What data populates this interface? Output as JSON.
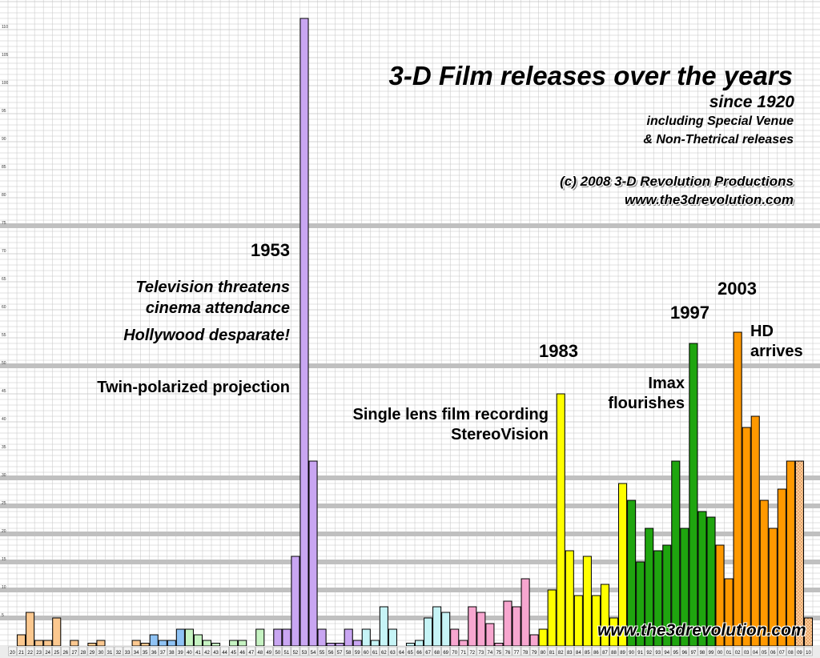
{
  "chart_data": {
    "type": "bar",
    "title": "3-D Film releases over the years",
    "subtitle": "since 1920",
    "notes": [
      "including Special Venue",
      "& Non-Thetrical releases"
    ],
    "copyright": "(c) 2008  3-D Revolution Productions",
    "website": "www.the3drevolution.com",
    "watermark": "www.the3drevolution.com",
    "ylim": [
      0,
      115
    ],
    "grid": true,
    "y_ticks": [
      5,
      10,
      15,
      20,
      25,
      30,
      35,
      40,
      45,
      50,
      55,
      60,
      65,
      70,
      75,
      80,
      85,
      90,
      95,
      100,
      105,
      110,
      115
    ],
    "highlight_lines": [
      5,
      10,
      15,
      20,
      25,
      30,
      50,
      75
    ],
    "categories": [
      "20",
      "21",
      "22",
      "23",
      "24",
      "25",
      "26",
      "27",
      "28",
      "29",
      "30",
      "31",
      "32",
      "33",
      "34",
      "35",
      "36",
      "37",
      "38",
      "39",
      "40",
      "41",
      "42",
      "43",
      "44",
      "45",
      "46",
      "47",
      "48",
      "49",
      "50",
      "51",
      "52",
      "53",
      "54",
      "55",
      "56",
      "57",
      "58",
      "59",
      "60",
      "61",
      "62",
      "63",
      "64",
      "65",
      "66",
      "67",
      "68",
      "69",
      "70",
      "71",
      "72",
      "73",
      "74",
      "75",
      "76",
      "77",
      "78",
      "79",
      "80",
      "81",
      "82",
      "83",
      "84",
      "85",
      "86",
      "87",
      "88",
      "89",
      "90",
      "91",
      "92",
      "93",
      "94",
      "95",
      "96",
      "97",
      "98",
      "99",
      "00",
      "01",
      "02",
      "03",
      "04",
      "05",
      "06",
      "07",
      "08",
      "09",
      "10"
    ],
    "values": [
      0,
      2,
      6,
      1,
      1,
      5,
      0,
      1,
      0,
      0.5,
      1,
      0,
      0,
      0,
      1,
      0.5,
      2,
      1,
      1,
      3,
      3,
      2,
      1,
      0.5,
      0,
      1,
      1,
      0,
      3,
      0,
      3,
      3,
      16,
      112,
      33,
      3,
      0.5,
      0.5,
      3,
      1,
      3,
      1,
      7,
      3,
      0,
      0.5,
      1,
      5,
      7,
      6,
      3,
      1,
      7,
      6,
      4,
      0.5,
      8,
      7,
      12,
      2,
      3,
      10,
      45,
      17,
      9,
      16,
      9,
      11,
      5,
      29,
      26,
      15,
      21,
      17,
      18,
      33,
      21,
      54,
      24,
      23,
      18,
      12,
      56,
      39,
      41,
      26,
      21,
      28,
      33,
      33,
      5
    ],
    "projected_from_index": 89,
    "eras": [
      {
        "from": "20",
        "to": "35",
        "color": "#fcc88f"
      },
      {
        "from": "36",
        "to": "39",
        "color": "#8fc3f5"
      },
      {
        "from": "40",
        "to": "49",
        "color": "#c6f3c2"
      },
      {
        "from": "50",
        "to": "59",
        "color": "#c9a6f2"
      },
      {
        "from": "60",
        "to": "69",
        "color": "#c6f4f6"
      },
      {
        "from": "70",
        "to": "79",
        "color": "#f7a6cf"
      },
      {
        "from": "80",
        "to": "89",
        "color": "#ffff00"
      },
      {
        "from": "90",
        "to": "99",
        "color": "#1fa50f"
      },
      {
        "from": "00",
        "to": "10",
        "color": "#ff9900"
      }
    ],
    "projected_color": "#ffcc99",
    "grid_color": "#c4c4c4",
    "highlight_color": "#c0c0c0"
  },
  "annotations": {
    "y1953": "1953",
    "tv_line1": "Television threatens",
    "tv_line2": "cinema attendance",
    "hollywood": "Hollywood desparate!",
    "twin": "Twin-polarized projection",
    "single_line1": "Single lens film recording",
    "single_line2": "StereoVision",
    "y1983": "1983",
    "imax_line1": "Imax",
    "imax_line2": "flourishes",
    "y1997": "1997",
    "y2003": "2003",
    "hd_line1": "HD",
    "hd_line2": "arrives"
  }
}
